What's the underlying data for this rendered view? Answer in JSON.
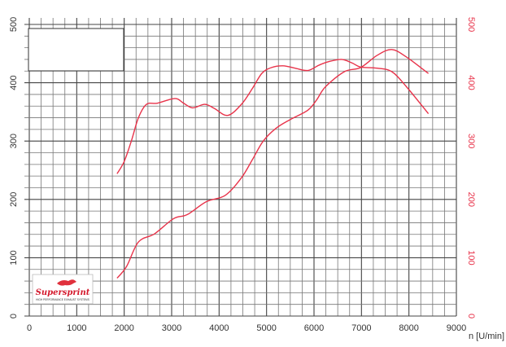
{
  "chart_data": {
    "type": "line",
    "xlabel": "n [U/min]",
    "ylabel": "",
    "xlim": [
      0,
      9000
    ],
    "ylim": [
      0,
      500
    ],
    "y2lim": [
      0,
      500
    ],
    "grid": true,
    "x_ticks": [
      "0",
      "1000",
      "2000",
      "3000",
      "4000",
      "5000",
      "6000",
      "7000",
      "8000",
      "9000"
    ],
    "y_ticks": [
      "0",
      "100",
      "200",
      "300",
      "400",
      "500"
    ],
    "y2_ticks": [
      "0",
      "100",
      "200",
      "300",
      "400",
      "500"
    ],
    "series": [
      {
        "color": "#e8334a",
        "x": [
          1850,
          2000,
          2150,
          2300,
          2470,
          2700,
          3070,
          3250,
          3440,
          3700,
          3900,
          4180,
          4470,
          4700,
          4900,
          5100,
          5350,
          5600,
          5870,
          6100,
          6300,
          6580,
          6800,
          6980,
          7330,
          7640,
          7950,
          8410
        ],
        "y": [
          244,
          265,
          300,
          340,
          363,
          365,
          373,
          365,
          357,
          363,
          356,
          344,
          363,
          390,
          416,
          426,
          429,
          425,
          421,
          430,
          436,
          440,
          434,
          427,
          425,
          419,
          393,
          347
        ]
      },
      {
        "color": "#e8334a",
        "x": [
          1850,
          2050,
          2300,
          2640,
          3040,
          3330,
          3730,
          4130,
          4470,
          4700,
          4930,
          5200,
          5500,
          5870,
          6050,
          6240,
          6640,
          6980,
          7330,
          7640,
          7950,
          8410
        ],
        "y": [
          65,
          85,
          127,
          141,
          167,
          174,
          196,
          207,
          237,
          268,
          300,
          322,
          337,
          353,
          370,
          393,
          419,
          426,
          447,
          457,
          444,
          416
        ]
      }
    ]
  },
  "logo": {
    "brand": "Supersprint",
    "tagline": "HIGH PERFORMANCE EXHAUST SYSTEMS",
    "color": "#d4192c"
  }
}
